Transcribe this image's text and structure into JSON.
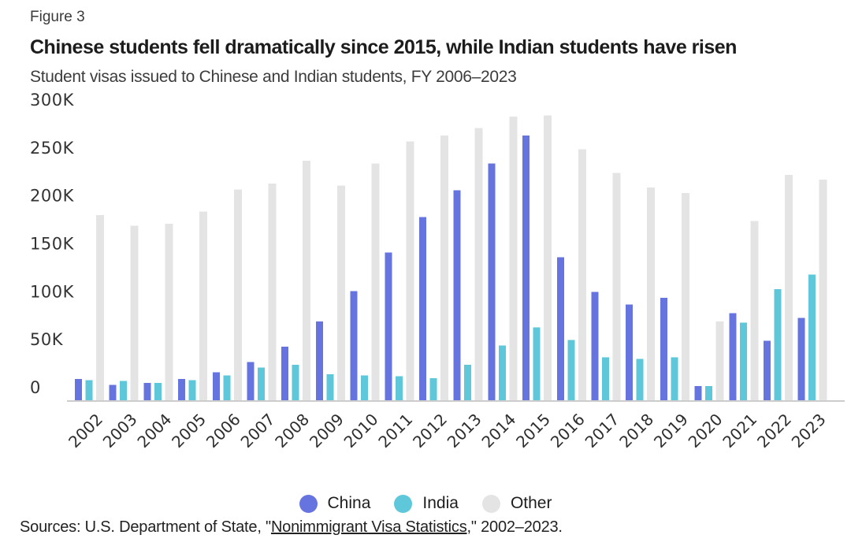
{
  "figure_label": "Figure 3",
  "title": "Chinese students fell dramatically since 2015, while Indian students have risen",
  "subtitle": "Student visas issued to Chinese and Indian students, FY 2006–2023",
  "source": {
    "prefix": "Sources: U.S. Department of State, \"",
    "link_text": "Nonimmigrant Visa Statistics",
    "suffix": ",\" 2002–2023."
  },
  "legend": {
    "items": [
      {
        "label": "China",
        "color": "#6674E0"
      },
      {
        "label": "India",
        "color": "#5EC8DA"
      },
      {
        "label": "Other",
        "color": "#E4E4E4"
      }
    ]
  },
  "colors": {
    "china": "#6674E0",
    "india": "#5EC8DA",
    "other": "#E4E4E4",
    "axis_line": "#CCCCCC",
    "axis_text": "#333333"
  },
  "chart_data": {
    "type": "bar",
    "unit": "thousands of visas",
    "title": "Chinese students fell dramatically since 2015, while Indian students have risen",
    "subtitle": "Student visas issued to Chinese and Indian students, FY 2006–2023",
    "grid": false,
    "legend_position": "bottom",
    "categories": [
      2002,
      2003,
      2004,
      2005,
      2006,
      2007,
      2008,
      2009,
      2010,
      2011,
      2012,
      2013,
      2014,
      2015,
      2016,
      2017,
      2018,
      2019,
      2020,
      2021,
      2022,
      2023
    ],
    "series": [
      {
        "name": "China",
        "color": "#6674E0",
        "values": [
          22,
          16,
          18,
          22,
          29,
          40,
          56,
          82,
          114,
          154,
          191,
          219,
          247,
          276,
          149,
          113,
          100,
          107,
          15,
          91,
          62,
          86
        ]
      },
      {
        "name": "India",
        "color": "#5EC8DA",
        "values": [
          21,
          20,
          18,
          21,
          26,
          34,
          37,
          27,
          26,
          25,
          23,
          37,
          57,
          76,
          63,
          45,
          43,
          45,
          15,
          81,
          116,
          131
        ]
      },
      {
        "name": "Other",
        "color": "#E4E4E4",
        "values": [
          193,
          182,
          184,
          197,
          220,
          226,
          250,
          224,
          247,
          270,
          276,
          284,
          296,
          297,
          262,
          237,
          222,
          216,
          82,
          187,
          235,
          230
        ]
      }
    ],
    "y_axis": {
      "min": 0,
      "max": 300,
      "ticks": [
        0,
        50,
        100,
        150,
        200,
        250,
        300
      ],
      "tick_labels": [
        "0",
        "50K",
        "100K",
        "150K",
        "200K",
        "250K",
        "300K"
      ]
    }
  }
}
